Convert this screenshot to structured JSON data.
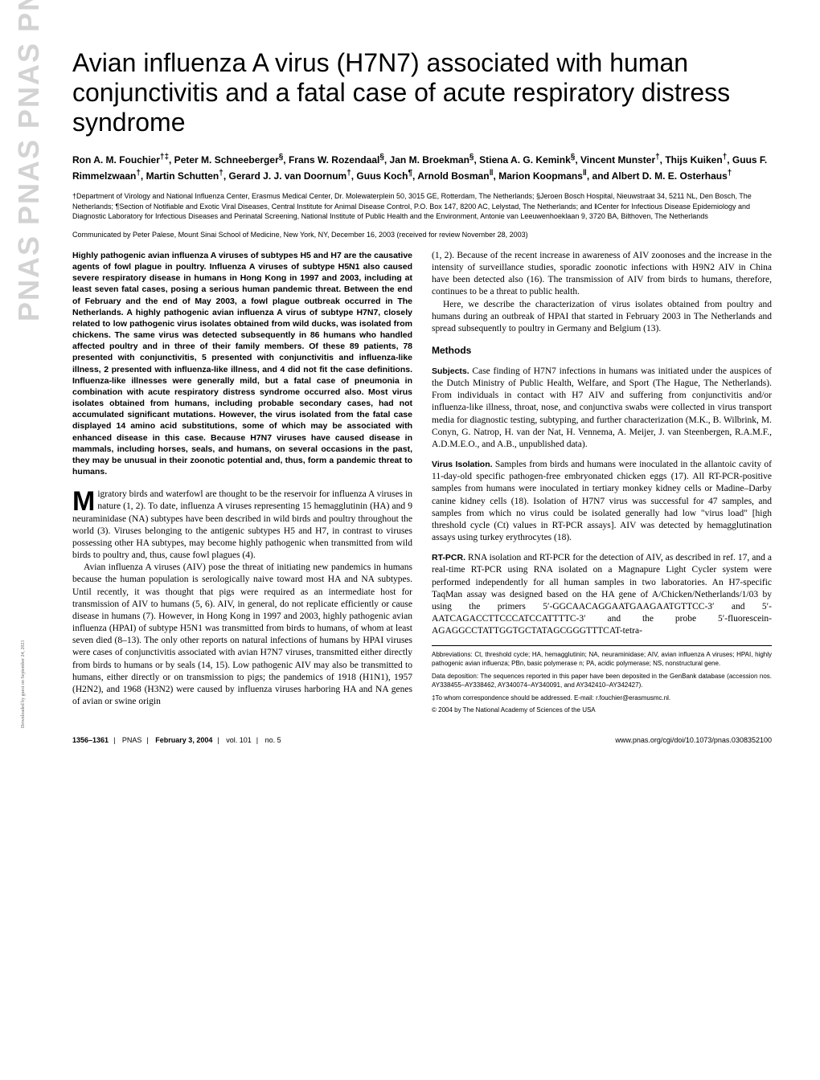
{
  "sidebar": "PNAS PNAS PNAS PNAS PNAS PNAS",
  "download_note": "Downloaded by guest on September 24, 2021",
  "title": "Avian influenza A virus (H7N7) associated with human conjunctivitis and a fatal case of acute respiratory distress syndrome",
  "authors_html": "Ron A. M. Fouchier<sup>†‡</sup>, Peter M. Schneeberger<sup>§</sup>, Frans W. Rozendaal<sup>§</sup>, Jan M. Broekman<sup>§</sup>, Stiena A. G. Kemink<sup>§</sup>, Vincent Munster<sup>†</sup>, Thijs Kuiken<sup>†</sup>, Guus F. Rimmelzwaan<sup>†</sup>, Martin Schutten<sup>†</sup>, Gerard J. J. van Doornum<sup>†</sup>, Guus Koch<sup>¶</sup>, Arnold Bosman<sup>‖</sup>, Marion Koopmans<sup>‖</sup>, and Albert D. M. E. Osterhaus<sup>†</sup>",
  "affiliations": "†Department of Virology and National Influenza Center, Erasmus Medical Center, Dr. Molewaterplein 50, 3015 GE, Rotterdam, The Netherlands; §Jeroen Bosch Hospital, Nieuwstraat 34, 5211 NL, Den Bosch, The Netherlands; ¶Section of Notifiable and Exotic Viral Diseases, Central Institute for Animal Disease Control, P.O. Box 147, 8200 AC, Lelystad, The Netherlands; and ‖Center for Infectious Disease Epidemiology and Diagnostic Laboratory for Infectious Diseases and Perinatal Screening, National Institute of Public Health and the Environment, Antonie van Leeuwenhoeklaan 9, 3720 BA, Bilthoven, The Netherlands",
  "communicated": "Communicated by Peter Palese, Mount Sinai School of Medicine, New York, NY, December 16, 2003 (received for review November 28, 2003)",
  "abstract": "Highly pathogenic avian influenza A viruses of subtypes H5 and H7 are the causative agents of fowl plague in poultry. Influenza A viruses of subtype H5N1 also caused severe respiratory disease in humans in Hong Kong in 1997 and 2003, including at least seven fatal cases, posing a serious human pandemic threat. Between the end of February and the end of May 2003, a fowl plague outbreak occurred in The Netherlands. A highly pathogenic avian influenza A virus of subtype H7N7, closely related to low pathogenic virus isolates obtained from wild ducks, was isolated from chickens. The same virus was detected subsequently in 86 humans who handled affected poultry and in three of their family members. Of these 89 patients, 78 presented with conjunctivitis, 5 presented with conjunctivitis and influenza-like illness, 2 presented with influenza-like illness, and 4 did not fit the case definitions. Influenza-like illnesses were generally mild, but a fatal case of pneumonia in combination with acute respiratory distress syndrome occurred also. Most virus isolates obtained from humans, including probable secondary cases, had not accumulated significant mutations. However, the virus isolated from the fatal case displayed 14 amino acid substitutions, some of which may be associated with enhanced disease in this case. Because H7N7 viruses have caused disease in mammals, including horses, seals, and humans, on several occasions in the past, they may be unusual in their zoonotic potential and, thus, form a pandemic threat to humans.",
  "body": {
    "p1_after_dropcap": "igratory birds and waterfowl are thought to be the reservoir for influenza A viruses in nature (1, 2). To date, influenza A viruses representing 15 hemagglutinin (HA) and 9 neuraminidase (NA) subtypes have been described in wild birds and poultry throughout the world (3). Viruses belonging to the antigenic subtypes H5 and H7, in contrast to viruses possessing other HA subtypes, may become highly pathogenic when transmitted from wild birds to poultry and, thus, cause fowl plagues (4).",
    "p2": "Avian influenza A viruses (AIV) pose the threat of initiating new pandemics in humans because the human population is serologically naive toward most HA and NA subtypes. Until recently, it was thought that pigs were required as an intermediate host for transmission of AIV to humans (5, 6). AIV, in general, do not replicate efficiently or cause disease in humans (7). However, in Hong Kong in 1997 and 2003, highly pathogenic avian influenza (HPAI) of subtype H5N1 was transmitted from birds to humans, of whom at least seven died (8–13). The only other reports on natural infections of humans by HPAI viruses were cases of conjunctivitis associated with avian H7N7 viruses, transmitted either directly from birds to humans or by seals (14, 15). Low pathogenic AIV may also be transmitted to humans, either directly or on transmission to pigs; the pandemics of 1918 (H1N1), 1957 (H2N2), and 1968 (H3N2) were caused by influenza viruses harboring HA and NA genes of avian or swine origin",
    "p3": "(1, 2). Because of the recent increase in awareness of AIV zoonoses and the increase in the intensity of surveillance studies, sporadic zoonotic infections with H9N2 AIV in China have been detected also (16). The transmission of AIV from birds to humans, therefore, continues to be a threat to public health.",
    "p4": "Here, we describe the characterization of virus isolates obtained from poultry and humans during an outbreak of HPAI that started in February 2003 in The Netherlands and spread subsequently to poultry in Germany and Belgium (13)."
  },
  "methods_heading": "Methods",
  "subjects": {
    "label": "Subjects.",
    "text": " Case finding of H7N7 infections in humans was initiated under the auspices of the Dutch Ministry of Public Health, Welfare, and Sport (The Hague, The Netherlands). From individuals in contact with H7 AIV and suffering from conjunctivitis and/or influenza-like illness, throat, nose, and conjunctiva swabs were collected in virus transport media for diagnostic testing, subtyping, and further characterization (M.K., B. Wilbrink, M. Conyn, G. Natrop, H. van der Nat, H. Vennema, A. Meijer, J. van Steenbergen, R.A.M.F., A.D.M.E.O., and A.B., unpublished data)."
  },
  "virus_isolation": {
    "label": "Virus Isolation.",
    "text": " Samples from birds and humans were inoculated in the allantoic cavity of 11-day-old specific pathogen-free embryonated chicken eggs (17). All RT-PCR-positive samples from humans were inoculated in tertiary monkey kidney cells or Madine–Darby canine kidney cells (18). Isolation of H7N7 virus was successful for 47 samples, and samples from which no virus could be isolated generally had low \"virus load\" [high threshold cycle (Ct) values in RT-PCR assays]. AIV was detected by hemagglutination assays using turkey erythrocytes (18)."
  },
  "rtpcr": {
    "label": "RT-PCR.",
    "text": " RNA isolation and RT-PCR for the detection of AIV, as described in ref. 17, and a real-time RT-PCR using RNA isolated on a Magnapure Light Cycler system were performed independently for all human samples in two laboratories. An H7-specific TaqMan assay was designed based on the HA gene of A/Chicken/Netherlands/1/03 by using the primers 5′-GGCAACAGGAATGAAGAATGTTCC-3′ and 5′-AATCAGACCTTCCCATCCATTTTC-3′ and the probe 5′-fluorescein-AGAGGCCTATTGGTGCTATAGCGGGTTTCAT-tetra-"
  },
  "footnotes": {
    "abbrev": "Abbreviations: Ct, threshold cycle; HA, hemagglutinin; NA, neuraminidase; AIV, avian influenza A viruses; HPAI, highly pathogenic avian influenza; PBn, basic polymerase n; PA, acidic polymerase; NS, nonstructural gene.",
    "data_dep": "Data deposition: The sequences reported in this paper have been deposited in the GenBank database (accession nos. AY338455–AY338462, AY340074–AY340091, and AY342410–AY342427).",
    "corresp": "‡To whom correspondence should be addressed. E-mail: r.fouchier@erasmusmc.nl.",
    "copyright": "© 2004 by The National Academy of Sciences of the USA"
  },
  "footer": {
    "pages": "1356–1361",
    "journal": "PNAS",
    "date": "February 3, 2004",
    "vol": "vol. 101",
    "no": "no. 5",
    "url": "www.pnas.org/cgi/doi/10.1073/pnas.0308352100"
  },
  "styles": {
    "title_fontsize": 32,
    "body_fontsize": 11.5,
    "abstract_fontsize": 10.5,
    "footnote_fontsize": 8,
    "sidebar_color": "#d3d3d3",
    "text_color": "#000000",
    "background": "#ffffff"
  }
}
